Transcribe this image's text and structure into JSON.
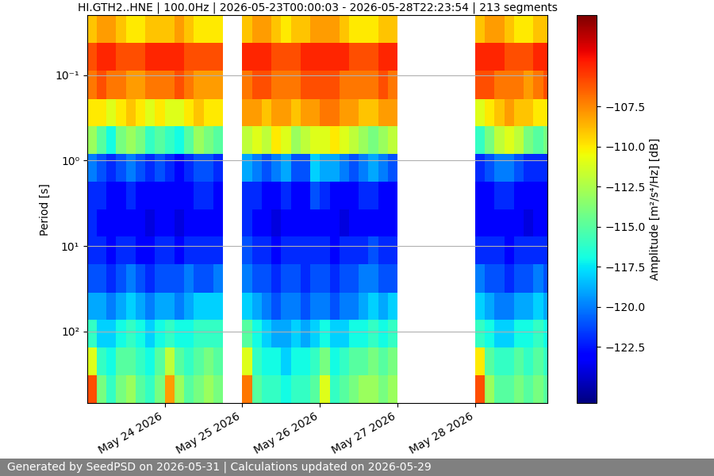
{
  "chart_data": {
    "type": "heatmap",
    "title": "HI.GTH2..HNE | 100.0Hz | 2026-05-23T00:00:03 - 2026-05-28T22:23:54 | 213 segments",
    "y_label": "Period [s]",
    "footer": "Generated by SeedPSD on 2026-05-31 | Calculations updated on 2026-05-29",
    "log": "y",
    "grid": true,
    "x_edges": [
      "2026-05-23T00:00",
      "2026-05-23T03:00",
      "2026-05-23T06:00",
      "2026-05-23T09:00",
      "2026-05-23T12:00",
      "2026-05-23T15:00",
      "2026-05-23T18:00",
      "2026-05-23T21:00",
      "2026-05-24T00:00",
      "2026-05-24T03:00",
      "2026-05-24T06:00",
      "2026-05-24T09:00",
      "2026-05-24T12:00",
      "2026-05-24T15:00",
      "2026-05-24T18:00",
      "2026-05-24T21:00",
      "2026-05-25T00:00",
      "2026-05-25T03:00",
      "2026-05-25T06:00",
      "2026-05-25T09:00",
      "2026-05-25T12:00",
      "2026-05-25T15:00",
      "2026-05-25T18:00",
      "2026-05-25T21:00",
      "2026-05-26T00:00",
      "2026-05-26T03:00",
      "2026-05-26T06:00",
      "2026-05-26T09:00",
      "2026-05-26T12:00",
      "2026-05-26T15:00",
      "2026-05-26T18:00",
      "2026-05-26T21:00",
      "2026-05-27T00:00",
      "2026-05-27T03:00",
      "2026-05-27T06:00",
      "2026-05-27T09:00",
      "2026-05-27T12:00",
      "2026-05-27T15:00",
      "2026-05-27T18:00",
      "2026-05-27T21:00",
      "2026-05-28T00:00",
      "2026-05-28T03:00",
      "2026-05-28T06:00",
      "2026-05-28T09:00",
      "2026-05-28T12:00",
      "2026-05-28T15:00",
      "2026-05-28T18:00",
      "2026-05-28T21:00",
      "2026-05-29T00:00"
    ],
    "y_edges": [
      0.02,
      0.042,
      0.089,
      0.19,
      0.4,
      0.83,
      1.76,
      3.7,
      7.8,
      16.5,
      35,
      73,
      155,
      326,
      690
    ],
    "cells": [
      [
        -109,
        -108,
        -108,
        -109,
        -110,
        -110,
        -109,
        -109,
        -109,
        -108,
        -109,
        -110,
        -110,
        -110,
        null,
        null,
        -109,
        -108,
        -108,
        -109,
        -110,
        -109,
        -109,
        -108,
        -108,
        -108,
        -109,
        -110,
        -110,
        -110,
        -109,
        -109,
        null,
        null,
        null,
        null,
        null,
        null,
        null,
        null,
        -109,
        -108,
        -108,
        -109,
        -110,
        -110,
        -109,
        -109
      ],
      [
        -106,
        -105,
        -105,
        -106,
        -106,
        -106,
        -105,
        -105,
        -105,
        -105,
        -106,
        -106,
        -106,
        -106,
        null,
        null,
        -105,
        -105,
        -105,
        -106,
        -106,
        -106,
        -105,
        -105,
        -105,
        -105,
        -105,
        -106,
        -106,
        -106,
        -105,
        -105,
        null,
        null,
        null,
        null,
        null,
        null,
        null,
        null,
        -105,
        -105,
        -105,
        -106,
        -106,
        -106,
        -105,
        -105
      ],
      [
        -107,
        -106,
        -107,
        -107,
        -108,
        -108,
        -107,
        -107,
        -107,
        -106,
        -107,
        -108,
        -108,
        -108,
        null,
        null,
        -107,
        -106,
        -106,
        -107,
        -107,
        -107,
        -106,
        -106,
        -106,
        -106,
        -107,
        -107,
        -107,
        -107,
        -106,
        -107,
        null,
        null,
        null,
        null,
        null,
        null,
        null,
        null,
        -106,
        -106,
        -107,
        -107,
        -107,
        -108,
        -107,
        -106
      ],
      [
        -110,
        -110,
        -111,
        -110,
        -109,
        -110,
        -111,
        -110,
        -111,
        -111,
        -110,
        -109,
        -110,
        -110,
        null,
        null,
        -108,
        -108,
        -109,
        -108,
        -108,
        -109,
        -108,
        -108,
        -107,
        -107,
        -108,
        -108,
        -109,
        -109,
        -108,
        -108,
        null,
        null,
        null,
        null,
        null,
        null,
        null,
        null,
        -111,
        -110,
        -109,
        -108,
        -109,
        -109,
        -110,
        -110
      ],
      [
        -113,
        -115,
        -117,
        -114,
        -113,
        -114,
        -116,
        -115,
        -116,
        -117,
        -115,
        -113,
        -114,
        -115,
        null,
        null,
        -112,
        -111,
        -112,
        -110,
        -111,
        -113,
        -112,
        -111,
        -111,
        -110,
        -111,
        -112,
        -113,
        -114,
        -113,
        -112,
        null,
        null,
        null,
        null,
        null,
        null,
        null,
        null,
        -116,
        -114,
        -112,
        -111,
        -112,
        -114,
        -115,
        -114
      ],
      [
        -120,
        -121,
        -122,
        -121,
        -120,
        -121,
        -122,
        -121,
        -122,
        -123,
        -122,
        -121,
        -121,
        -122,
        null,
        null,
        -119,
        -120,
        -121,
        -120,
        -119,
        -121,
        -121,
        -118,
        -119,
        -119,
        -120,
        -121,
        -120,
        -119,
        -120,
        -121,
        null,
        null,
        null,
        null,
        null,
        null,
        null,
        null,
        -122,
        -121,
        -120,
        -120,
        -121,
        -122,
        -122,
        -122
      ],
      [
        -122,
        -122,
        -123,
        -123,
        -122,
        -123,
        -123,
        -123,
        -123,
        -123,
        -123,
        -122,
        -122,
        -123,
        null,
        null,
        -122,
        -122,
        -123,
        -123,
        -122,
        -123,
        -123,
        -121,
        -122,
        -123,
        -123,
        -123,
        -122,
        -122,
        -123,
        -123,
        null,
        null,
        null,
        null,
        null,
        null,
        null,
        null,
        -123,
        -123,
        -122,
        -122,
        -123,
        -123,
        -123,
        -123
      ],
      [
        -122,
        -123,
        -123,
        -123,
        -123,
        -123,
        -124,
        -123,
        -123,
        -124,
        -123,
        -123,
        -123,
        -123,
        null,
        null,
        -122,
        -123,
        -123,
        -124,
        -123,
        -123,
        -123,
        -123,
        -123,
        -123,
        -124,
        -123,
        -123,
        -123,
        -123,
        -123,
        null,
        null,
        null,
        null,
        null,
        null,
        null,
        null,
        -123,
        -123,
        -123,
        -123,
        -123,
        -124,
        -123,
        -123
      ],
      [
        -122,
        -122,
        -123,
        -122,
        -122,
        -123,
        -123,
        -122,
        -122,
        -123,
        -122,
        -122,
        -122,
        -122,
        null,
        null,
        -121,
        -122,
        -122,
        -123,
        -122,
        -122,
        -122,
        -122,
        -122,
        -123,
        -122,
        -122,
        -122,
        -121,
        -122,
        -122,
        null,
        null,
        null,
        null,
        null,
        null,
        null,
        null,
        -122,
        -122,
        -122,
        -123,
        -122,
        -122,
        -122,
        -122
      ],
      [
        -121,
        -121,
        -122,
        -121,
        -120,
        -121,
        -122,
        -121,
        -121,
        -121,
        -120,
        -121,
        -121,
        -120,
        null,
        null,
        -120,
        -121,
        -121,
        -122,
        -121,
        -121,
        -122,
        -121,
        -121,
        -122,
        -121,
        -121,
        -120,
        -120,
        -121,
        -121,
        null,
        null,
        null,
        null,
        null,
        null,
        null,
        null,
        -120,
        -121,
        -121,
        -122,
        -121,
        -121,
        -120,
        -121
      ],
      [
        -119,
        -119,
        -120,
        -119,
        -118,
        -119,
        -120,
        -119,
        -119,
        -120,
        -119,
        -118,
        -118,
        -118,
        null,
        null,
        -118,
        -119,
        -120,
        -121,
        -120,
        -120,
        -121,
        -120,
        -120,
        -121,
        -120,
        -120,
        -119,
        -118,
        -119,
        -118,
        null,
        null,
        null,
        null,
        null,
        null,
        null,
        null,
        -118,
        -119,
        -120,
        -120,
        -119,
        -119,
        -118,
        -119
      ],
      [
        -116,
        -118,
        -118,
        -117,
        -116,
        -117,
        -118,
        -117,
        -116,
        -117,
        -117,
        -116,
        -116,
        -116,
        null,
        null,
        -115,
        -117,
        -118,
        -119,
        -119,
        -118,
        -119,
        -118,
        -117,
        -118,
        -118,
        -117,
        -117,
        -116,
        -117,
        -116,
        null,
        null,
        null,
        null,
        null,
        null,
        null,
        null,
        -116,
        -117,
        -118,
        -118,
        -117,
        -117,
        -116,
        -117
      ],
      [
        -111,
        -116,
        -117,
        -115,
        -115,
        -116,
        -117,
        -115,
        -112,
        -115,
        -116,
        -115,
        -114,
        -115,
        null,
        null,
        -111,
        -116,
        -117,
        -117,
        -118,
        -117,
        -117,
        -116,
        -114,
        -117,
        -116,
        -115,
        -115,
        -114,
        -115,
        -114,
        null,
        null,
        null,
        null,
        null,
        null,
        null,
        null,
        -110,
        -115,
        -116,
        -116,
        -115,
        -116,
        -115,
        -116
      ],
      [
        -106,
        -114,
        -116,
        -114,
        -113,
        -115,
        -116,
        -114,
        -108,
        -113,
        -115,
        -114,
        -113,
        -114,
        null,
        null,
        -107,
        -115,
        -116,
        -116,
        -117,
        -116,
        -116,
        -115,
        -111,
        -116,
        -115,
        -114,
        -113,
        -113,
        -114,
        -113,
        null,
        null,
        null,
        null,
        null,
        null,
        null,
        null,
        -106,
        -113,
        -115,
        -115,
        -114,
        -115,
        -114,
        -115
      ]
    ],
    "xlim": [
      "2026-05-23T00:00",
      "2026-05-28T22:24"
    ],
    "xticks": [
      {
        "value": "2026-05-24T00:00",
        "label": "May 24 2026"
      },
      {
        "value": "2026-05-25T00:00",
        "label": "May 25 2026"
      },
      {
        "value": "2026-05-26T00:00",
        "label": "May 26 2026"
      },
      {
        "value": "2026-05-27T00:00",
        "label": "May 27 2026"
      },
      {
        "value": "2026-05-28T00:00",
        "label": "May 28 2026"
      }
    ],
    "ylim": [
      690,
      0.02
    ],
    "yticks": [
      {
        "value": 0.1,
        "label": "10⁻¹"
      },
      {
        "value": 1,
        "label": "10⁰"
      },
      {
        "value": 10,
        "label": "10¹"
      },
      {
        "value": 100,
        "label": "10²"
      }
    ],
    "colorbar": {
      "label": "Amplitude [m²/s⁴/Hz] [dB]",
      "range": [
        -126,
        -101.8
      ],
      "ticks": [
        {
          "value": -122.5,
          "label": "−122.5"
        },
        {
          "value": -120,
          "label": "−120.0"
        },
        {
          "value": -117.5,
          "label": "−117.5"
        },
        {
          "value": -115,
          "label": "−115.0"
        },
        {
          "value": -112.5,
          "label": "−112.5"
        },
        {
          "value": -110,
          "label": "−110.0"
        },
        {
          "value": -107.5,
          "label": "−107.5"
        }
      ]
    }
  }
}
